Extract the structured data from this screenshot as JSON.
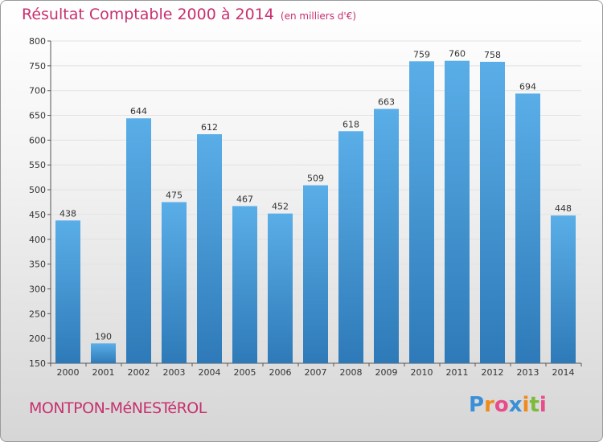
{
  "header": {
    "title": "Résultat Comptable 2000 à 2014",
    "unit": "(en milliers d'€)"
  },
  "footer": {
    "commune": "MONTPON-MéNESTéROL",
    "brand": [
      "P",
      "r",
      "o",
      "x",
      "i",
      "t",
      "i"
    ]
  },
  "colors": {
    "title": "#c8306f",
    "bar_top": "#5aaee8",
    "bar_bottom": "#2e7ab8",
    "grid": "#e2e2e2",
    "brand": [
      "#3a8fd6",
      "#f08a1c",
      "#e84c8a",
      "#3a8fd6",
      "#f08a1c",
      "#7dbb3a",
      "#e84c8a"
    ]
  },
  "chart_data": {
    "type": "bar",
    "title": "Résultat Comptable 2000 à 2014",
    "subtitle": "(en milliers d'€)",
    "categories": [
      "2000",
      "2001",
      "2002",
      "2003",
      "2004",
      "2005",
      "2006",
      "2007",
      "2008",
      "2009",
      "2010",
      "2011",
      "2012",
      "2013",
      "2014"
    ],
    "values": [
      438,
      190,
      644,
      475,
      612,
      467,
      452,
      509,
      618,
      663,
      759,
      760,
      758,
      694,
      448
    ],
    "ylim": [
      150,
      800
    ],
    "yticks": [
      150,
      200,
      250,
      300,
      350,
      400,
      450,
      500,
      550,
      600,
      650,
      700,
      750,
      800
    ],
    "xlabel": "",
    "ylabel": "",
    "grid": true
  }
}
